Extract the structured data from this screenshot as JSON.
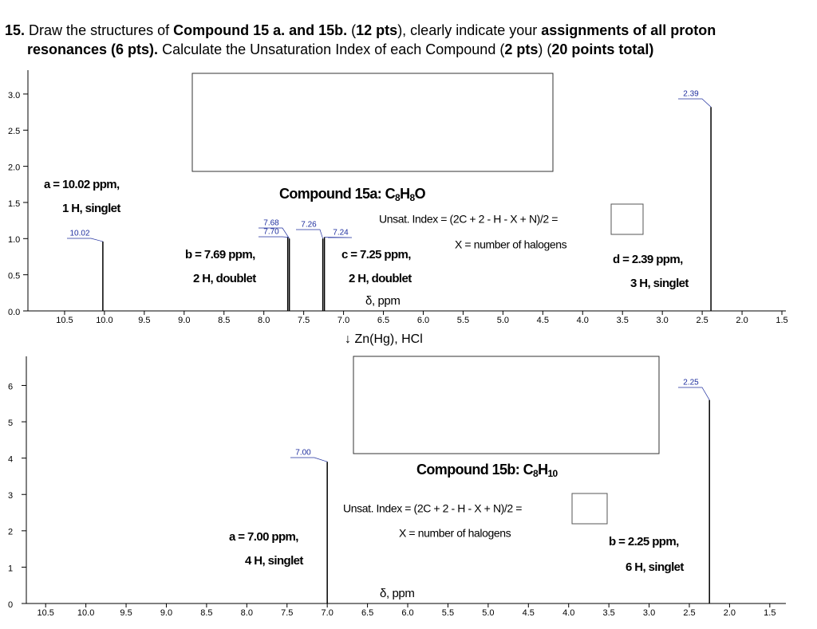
{
  "question": {
    "line1": [
      "15.",
      "Draw the structures of ",
      "Compound 15 a. and 15b.",
      " (",
      "12 pts",
      "), clearly indicate your ",
      "assignments of all proton"
    ],
    "line2": [
      "resonances (6 pts).",
      " Calculate the Unsaturation Index of each Compound (",
      "2 pts",
      ") (",
      "20 points total)"
    ]
  },
  "reaction": "↓ Zn(Hg), HCl",
  "chart_data": [
    {
      "type": "stick",
      "title_parts": [
        "Compound 15a: C",
        "8",
        "H",
        "8",
        "O"
      ],
      "xlabel": "δ, ppm",
      "x": [
        10.02,
        7.7,
        7.68,
        7.26,
        7.24,
        2.39
      ],
      "peak_labels": [
        "10.02",
        "7.70",
        "7.68",
        "7.26",
        "7.24",
        "2.39"
      ],
      "values": [
        0.96,
        1.02,
        1.0,
        1.0,
        1.02,
        2.82
      ],
      "xlim": [
        10.96,
        1.45
      ],
      "ylim": [
        0,
        3.33
      ],
      "xticks": [
        {
          "value": 10.5,
          "label": "10.5"
        },
        {
          "value": 10,
          "label": "10.0"
        },
        {
          "value": 9.5,
          "label": "9.5"
        },
        {
          "value": 9,
          "label": "9.0"
        },
        {
          "value": 8.5,
          "label": "8.5"
        },
        {
          "value": 8,
          "label": "8.0"
        },
        {
          "value": 7.5,
          "label": "7.5"
        },
        {
          "value": 7,
          "label": "7.0"
        },
        {
          "value": 6.5,
          "label": "6.5"
        },
        {
          "value": 6,
          "label": "6.0"
        },
        {
          "value": 5.5,
          "label": "5.5"
        },
        {
          "value": 5,
          "label": "5.0"
        },
        {
          "value": 4.5,
          "label": "4.5"
        },
        {
          "value": 4,
          "label": "4.0"
        },
        {
          "value": 3.5,
          "label": "3.5"
        },
        {
          "value": 3,
          "label": "3.0"
        },
        {
          "value": 2.5,
          "label": "2.5"
        },
        {
          "value": 2,
          "label": "2.0"
        },
        {
          "value": 1.5,
          "label": "1.5"
        }
      ],
      "yticks": [
        {
          "value": 0,
          "label": "0.0"
        },
        {
          "value": 0.5,
          "label": "0.5"
        },
        {
          "value": 1,
          "label": "1.0"
        },
        {
          "value": 1.5,
          "label": "1.5"
        },
        {
          "value": 2,
          "label": "2.0"
        },
        {
          "value": 2.5,
          "label": "2.5"
        },
        {
          "value": 3,
          "label": "3.0"
        }
      ],
      "color": "#000000",
      "label_color": "#1f2f9f",
      "annotations": [
        "a = 10.02 ppm,",
        "1 H, singlet",
        "b = 7.69 ppm,",
        "2 H, doublet",
        "c = 7.25 ppm,",
        "2 H, doublet",
        "d = 2.39 ppm,",
        "3 H, singlet"
      ],
      "unsat_label": "Unsat. Index = (2C + 2 - H - X + N)/2 =",
      "halogen_note": "X = number of halogens"
    },
    {
      "type": "stick",
      "title_parts": [
        "Compound 15b: C",
        "8",
        "H",
        "10"
      ],
      "xlabel": "δ, ppm",
      "x": [
        7.0,
        2.25
      ],
      "peak_labels": [
        "7.00",
        "2.25"
      ],
      "values": [
        3.9,
        5.6
      ],
      "xlim": [
        10.74,
        1.3
      ],
      "ylim": [
        0,
        6.8
      ],
      "xticks": [
        {
          "value": 10.5,
          "label": "10.5"
        },
        {
          "value": 10,
          "label": "10.0"
        },
        {
          "value": 9.5,
          "label": "9.5"
        },
        {
          "value": 9,
          "label": "9.0"
        },
        {
          "value": 8.5,
          "label": "8.5"
        },
        {
          "value": 8,
          "label": "8.0"
        },
        {
          "value": 7.5,
          "label": "7.5"
        },
        {
          "value": 7,
          "label": "7.0"
        },
        {
          "value": 6.5,
          "label": "6.5"
        },
        {
          "value": 6,
          "label": "6.0"
        },
        {
          "value": 5.5,
          "label": "5.5"
        },
        {
          "value": 5,
          "label": "5.0"
        },
        {
          "value": 4.5,
          "label": "4.5"
        },
        {
          "value": 4,
          "label": "4.0"
        },
        {
          "value": 3.5,
          "label": "3.5"
        },
        {
          "value": 3,
          "label": "3.0"
        },
        {
          "value": 2.5,
          "label": "2.5"
        },
        {
          "value": 2,
          "label": "2.0"
        },
        {
          "value": 1.5,
          "label": "1.5"
        }
      ],
      "yticks": [
        0,
        1,
        2,
        3,
        4,
        5,
        6
      ],
      "color": "#000000",
      "label_color": "#1f2f9f",
      "annotations": [
        "a = 7.00 ppm,",
        "4 H, singlet",
        "b = 2.25 ppm,",
        "6 H, singlet"
      ],
      "unsat_label": "Unsat. Index = (2C + 2 - H - X + N)/2 =",
      "halogen_note": "X = number of halogens"
    }
  ]
}
